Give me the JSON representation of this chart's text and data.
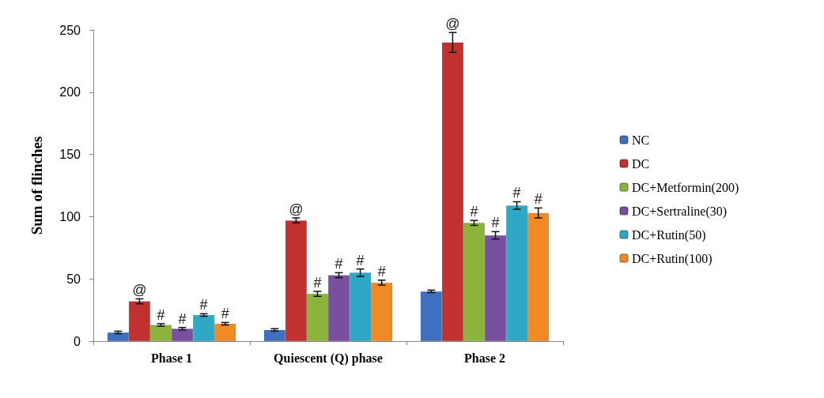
{
  "chart_data": {
    "type": "bar",
    "ylabel": "Sum of flinches",
    "categories": [
      "Phase 1",
      "Quiescent (Q) phase",
      "Phase 2"
    ],
    "series": [
      {
        "name": "NC",
        "color": "#3f6fbf",
        "values": [
          7,
          9,
          40
        ],
        "errors": [
          1,
          1,
          1
        ]
      },
      {
        "name": "DC",
        "color": "#c0312f",
        "values": [
          32,
          97,
          240
        ],
        "errors": [
          2,
          2,
          8
        ],
        "value_labels": [
          "@",
          "@",
          "@"
        ]
      },
      {
        "name": "DC+Metformin(200)",
        "color": "#8cb43c",
        "values": [
          13,
          38,
          95
        ],
        "errors": [
          1,
          2,
          2
        ],
        "value_labels": [
          "#",
          "#",
          "#"
        ]
      },
      {
        "name": "DC+Sertraline(30)",
        "color": "#7a4fa0",
        "values": [
          10,
          53,
          85
        ],
        "errors": [
          1,
          2,
          3
        ],
        "value_labels": [
          "#",
          "#",
          "#"
        ]
      },
      {
        "name": "DC+Rutin(50)",
        "color": "#2fa8c8",
        "values": [
          21,
          55,
          109
        ],
        "errors": [
          1,
          3,
          3
        ],
        "value_labels": [
          "#",
          "#",
          "#"
        ]
      },
      {
        "name": "DC+Rutin(100)",
        "color": "#f08a24",
        "values": [
          14,
          47,
          103
        ],
        "errors": [
          1,
          2,
          4
        ],
        "value_labels": [
          "#",
          "#",
          "#"
        ]
      }
    ],
    "ylim": [
      0,
      250
    ],
    "yticks": [
      0,
      50,
      100,
      150,
      200,
      250
    ],
    "grid": false,
    "legend": "right"
  }
}
